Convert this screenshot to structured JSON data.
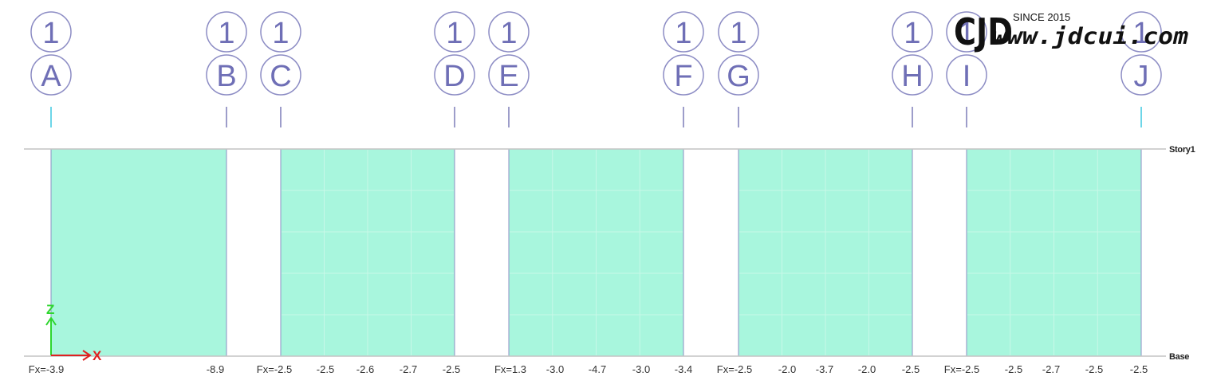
{
  "grid_axes": [
    {
      "number": "1",
      "letter": "A"
    },
    {
      "number": "1",
      "letter": "B"
    },
    {
      "number": "1",
      "letter": "C"
    },
    {
      "number": "1",
      "letter": "D"
    },
    {
      "number": "1",
      "letter": "E"
    },
    {
      "number": "1",
      "letter": "F"
    },
    {
      "number": "1",
      "letter": "G"
    },
    {
      "number": "1",
      "letter": "H"
    },
    {
      "number": "1",
      "letter": "I"
    },
    {
      "number": "1",
      "letter": "J"
    }
  ],
  "levels": {
    "top": "Story1",
    "bottom": "Base"
  },
  "wall_panels": [
    {
      "from": "A",
      "to": "B"
    },
    {
      "from": "C",
      "to": "D"
    },
    {
      "from": "E",
      "to": "F"
    },
    {
      "from": "G",
      "to": "H"
    },
    {
      "from": "I",
      "to": "J"
    }
  ],
  "force_labels": [
    "Fx=-3.9",
    "-8.9",
    "Fx=-2.5",
    "-2.5",
    "-2.6",
    "-2.7",
    "-2.5",
    "Fx=1.3",
    "-3.0",
    "-4.7",
    "-3.0",
    "-3.4",
    "Fx=-2.5",
    "-2.0",
    "-3.7",
    "-2.0",
    "-2.5",
    "Fx=-2.5",
    "-2.5",
    "-2.7",
    "-2.5",
    "-2.5"
  ],
  "axes_triad": {
    "vertical": "Z",
    "horizontal": "X",
    "vertical_color": "#2fd62f",
    "horizontal_color": "#e02020"
  },
  "watermark": {
    "mark": "CJD",
    "since": "SINCE 2015",
    "url": "www.jdcui.com"
  },
  "colors": {
    "panel_fill": "#a8f6dd",
    "bubble_stroke": "#8c8cc4",
    "bubble_text": "#6f6fb6"
  }
}
